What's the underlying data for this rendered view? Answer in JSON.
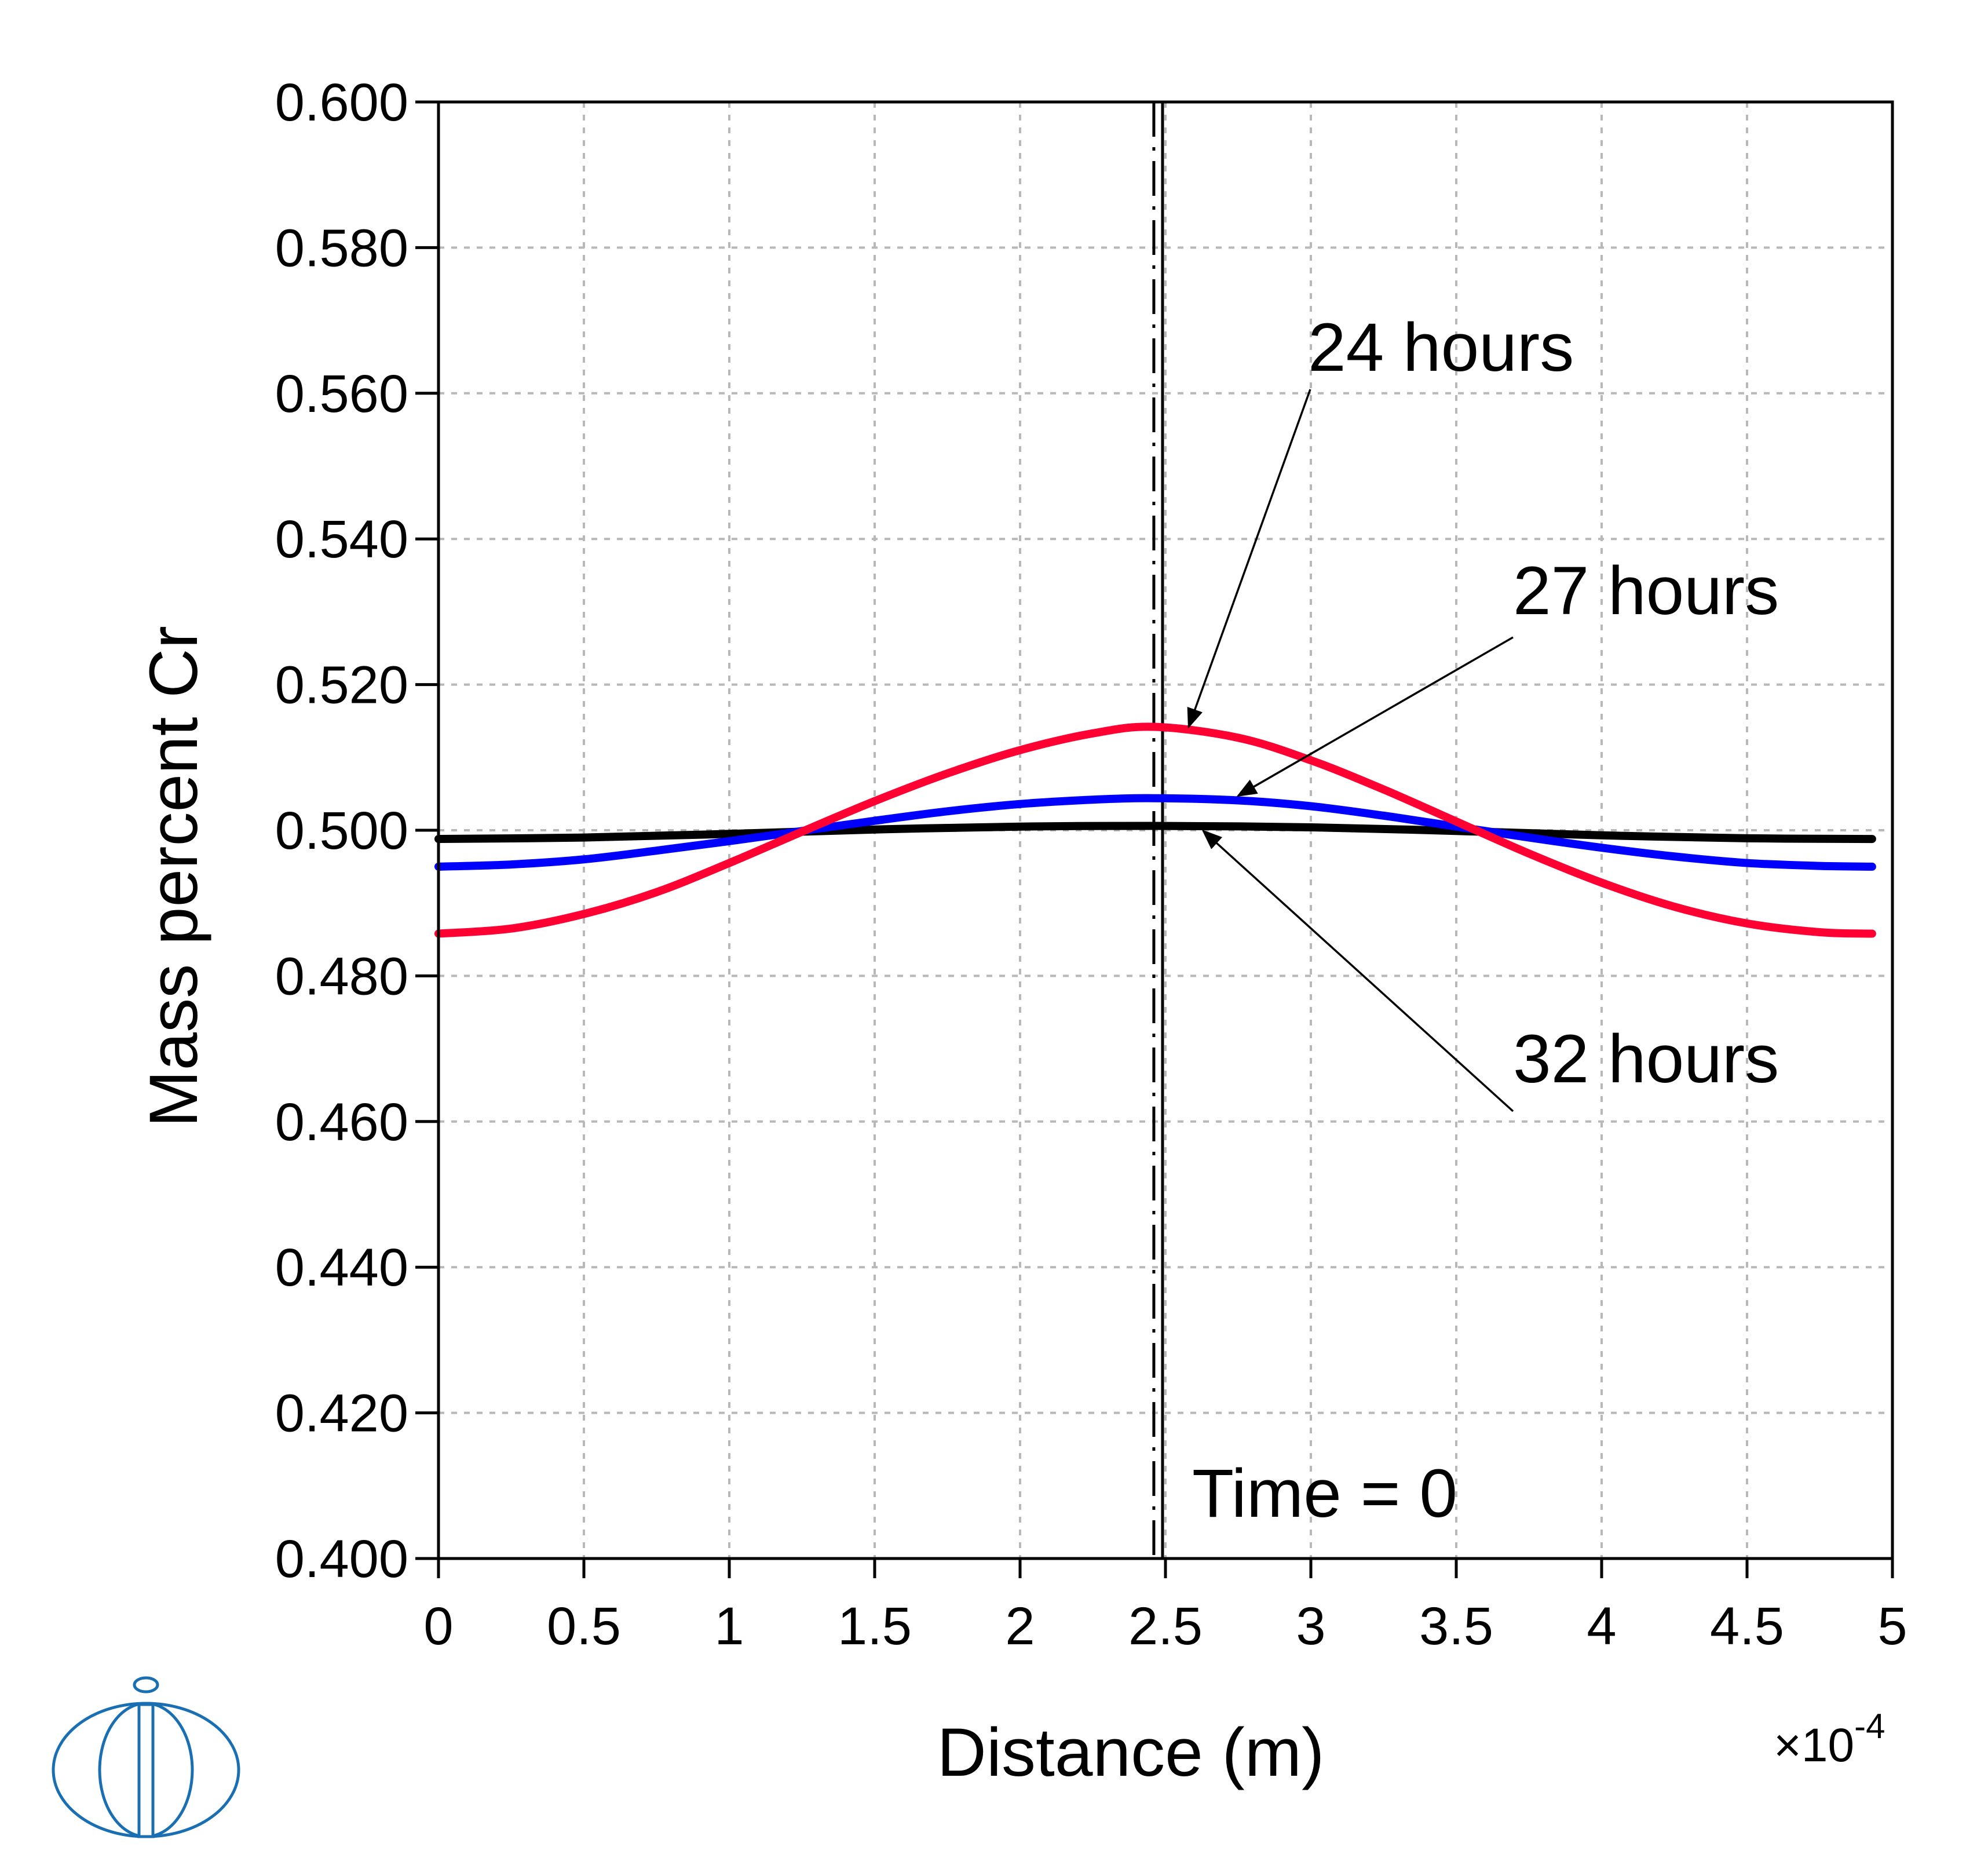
{
  "chart_data": {
    "type": "line",
    "xlabel": "Distance (m)",
    "ylabel": "Mass percent Cr",
    "x_multiplier": "×10",
    "x_multiplier_exp": "-4",
    "xlim": [
      0,
      5
    ],
    "ylim": [
      0.4,
      0.6
    ],
    "x_ticks": [
      0,
      0.5,
      1,
      1.5,
      2,
      2.5,
      3,
      3.5,
      4,
      4.5,
      5
    ],
    "x_tick_labels": [
      "0",
      "0.5",
      "1",
      "1.5",
      "2",
      "2.5",
      "3",
      "3.5",
      "4",
      "4.5",
      "5"
    ],
    "y_ticks": [
      0.4,
      0.42,
      0.44,
      0.46,
      0.48,
      0.5,
      0.52,
      0.54,
      0.56,
      0.58,
      0.6
    ],
    "y_tick_labels": [
      "0.400",
      "0.420",
      "0.440",
      "0.460",
      "0.480",
      "0.500",
      "0.520",
      "0.540",
      "0.560",
      "0.580",
      "0.600"
    ],
    "grid": true,
    "series": [
      {
        "name": "24 hours",
        "color": "#ff0033",
        "x": [
          0,
          0.25,
          0.5,
          0.75,
          1.0,
          1.25,
          1.5,
          1.75,
          2.0,
          2.25,
          2.46,
          2.75,
          3.0,
          3.25,
          3.5,
          3.75,
          4.0,
          4.25,
          4.5,
          4.75,
          4.93
        ],
        "y": [
          0.4858,
          0.4865,
          0.4885,
          0.4915,
          0.4955,
          0.4998,
          0.504,
          0.5078,
          0.511,
          0.5133,
          0.5142,
          0.5127,
          0.5096,
          0.5056,
          0.5012,
          0.4968,
          0.4928,
          0.4895,
          0.4872,
          0.486,
          0.4858
        ]
      },
      {
        "name": "27 hours",
        "color": "#0000ff",
        "x": [
          0,
          0.25,
          0.5,
          0.75,
          1.0,
          1.25,
          1.5,
          1.75,
          2.0,
          2.25,
          2.46,
          2.75,
          3.0,
          3.25,
          3.5,
          3.75,
          4.0,
          4.25,
          4.5,
          4.75,
          4.93
        ],
        "y": [
          0.495,
          0.4953,
          0.496,
          0.4972,
          0.4985,
          0.4999,
          0.5013,
          0.5026,
          0.5036,
          0.5042,
          0.5044,
          0.5041,
          0.5033,
          0.502,
          0.5005,
          0.499,
          0.4976,
          0.4964,
          0.4955,
          0.4951,
          0.495
        ]
      },
      {
        "name": "32 hours",
        "color": "#000000",
        "x": [
          0,
          0.5,
          1.0,
          1.5,
          2.0,
          2.46,
          3.0,
          3.5,
          4.0,
          4.5,
          4.93
        ],
        "y": [
          0.4988,
          0.499,
          0.4995,
          0.5001,
          0.5005,
          0.5006,
          0.5004,
          0.4999,
          0.4993,
          0.4989,
          0.4988
        ]
      }
    ],
    "reference_lines": [
      {
        "name": "Time = 0",
        "x": 2.46,
        "style": "dash-dot"
      },
      {
        "name": "solid-marker",
        "x": 2.49,
        "style": "solid"
      }
    ],
    "annotations": [
      {
        "text": "24 hours",
        "arrow_to_series": "24 hours",
        "arrow_x": 2.58
      },
      {
        "text": "27 hours",
        "arrow_to_series": "27 hours",
        "arrow_x": 2.75
      },
      {
        "text": "32 hours",
        "arrow_to_series": "32 hours",
        "arrow_x": 2.63
      },
      {
        "text": "Time = 0"
      }
    ]
  }
}
